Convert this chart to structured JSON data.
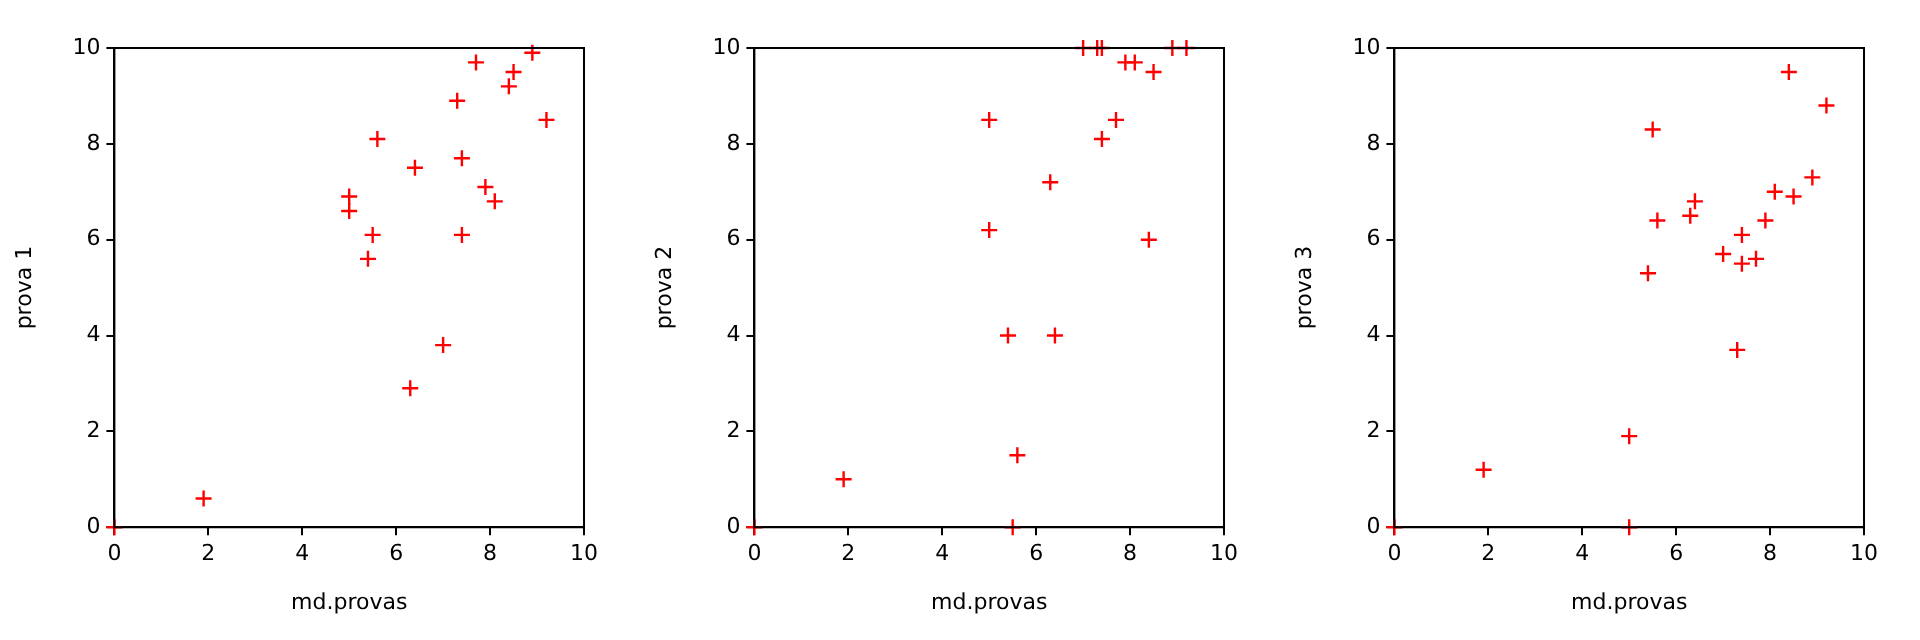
{
  "chart_data": [
    {
      "type": "scatter",
      "xlabel": "md.provas",
      "ylabel": "prova 1",
      "x": [
        0,
        1.9,
        5.0,
        5.0,
        5.6,
        5.5,
        5.4,
        6.4,
        6.3,
        7.0,
        7.3,
        7.4,
        7.4,
        7.7,
        7.9,
        8.1,
        8.4,
        8.5,
        8.9,
        9.2
      ],
      "series": [
        {
          "color": "#ff0000",
          "values": [
            0,
            0.6,
            6.9,
            6.6,
            8.1,
            6.1,
            5.6,
            7.5,
            2.9,
            3.8,
            8.9,
            7.7,
            6.1,
            9.7,
            7.1,
            6.8,
            9.2,
            9.5,
            9.9,
            8.5
          ]
        }
      ],
      "xlim": [
        0,
        10
      ],
      "ylim": [
        0,
        10
      ],
      "xticks": [
        0,
        2,
        4,
        6,
        8,
        10
      ],
      "yticks": [
        0,
        2,
        4,
        6,
        8,
        10
      ],
      "marker": "cross",
      "grid": false,
      "legend": false
    },
    {
      "type": "scatter",
      "xlabel": "md.provas",
      "ylabel": "prova 2",
      "x": [
        0,
        1.9,
        5.0,
        5.0,
        5.4,
        5.5,
        5.6,
        6.3,
        6.4,
        7.0,
        7.3,
        7.4,
        7.4,
        7.7,
        7.9,
        8.1,
        8.4,
        8.5,
        8.9,
        9.2
      ],
      "series": [
        {
          "color": "#ff0000",
          "values": [
            0,
            1.0,
            8.5,
            6.2,
            4.0,
            0,
            1.5,
            7.2,
            4.0,
            10,
            10,
            10,
            8.1,
            8.5,
            9.7,
            9.7,
            6.0,
            9.5,
            10,
            10
          ]
        }
      ],
      "xlim": [
        0,
        10
      ],
      "ylim": [
        0,
        10
      ],
      "xticks": [
        0,
        2,
        4,
        6,
        8,
        10
      ],
      "yticks": [
        0,
        2,
        4,
        6,
        8,
        10
      ],
      "marker": "cross",
      "grid": false,
      "legend": false
    },
    {
      "type": "scatter",
      "xlabel": "md.provas",
      "ylabel": "prova 3",
      "x": [
        0,
        1.9,
        5.0,
        5.0,
        5.4,
        5.5,
        5.6,
        6.3,
        6.4,
        7.0,
        7.3,
        7.4,
        7.4,
        7.7,
        7.9,
        8.1,
        8.4,
        8.5,
        8.9,
        9.2
      ],
      "series": [
        {
          "color": "#ff0000",
          "values": [
            0,
            1.2,
            1.9,
            0,
            5.3,
            8.3,
            6.4,
            6.5,
            6.8,
            5.7,
            3.7,
            6.1,
            5.5,
            5.6,
            6.4,
            7.0,
            9.5,
            6.9,
            7.3,
            8.8
          ]
        }
      ],
      "xlim": [
        0,
        10
      ],
      "ylim": [
        0,
        10
      ],
      "xticks": [
        0,
        2,
        4,
        6,
        8,
        10
      ],
      "yticks": [
        0,
        2,
        4,
        6,
        8,
        10
      ],
      "marker": "cross",
      "grid": false,
      "legend": false
    }
  ]
}
